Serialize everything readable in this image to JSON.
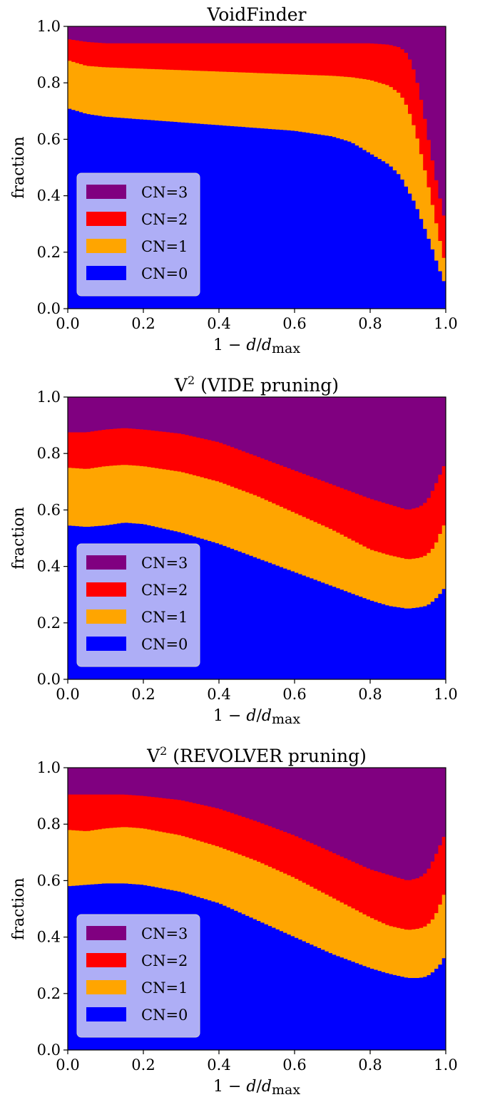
{
  "figure": {
    "panels": [
      {
        "title_main": "VoidFinder",
        "title_sup": "",
        "title_rest": ""
      },
      {
        "title_main": "V",
        "title_sup": "2",
        "title_rest": " (VIDE pruning)"
      },
      {
        "title_main": "V",
        "title_sup": "2",
        "title_rest": " (REVOLVER pruning)"
      }
    ]
  },
  "chart_data": [
    {
      "type": "area",
      "title": "VoidFinder",
      "xlabel": "1 − d/dmax",
      "ylabel": "fraction",
      "xlim": [
        0,
        1
      ],
      "ylim": [
        0,
        1
      ],
      "xticks": [
        "0.0",
        "0.2",
        "0.4",
        "0.6",
        "0.8",
        "1.0"
      ],
      "yticks": [
        "0.0",
        "0.2",
        "0.4",
        "0.6",
        "0.8",
        "1.0"
      ],
      "stacked": true,
      "legend": {
        "placement": "lower-left",
        "entries": [
          "CN=3",
          "CN=2",
          "CN=1",
          "CN=0"
        ]
      },
      "x": [
        0,
        0.05,
        0.1,
        0.2,
        0.3,
        0.4,
        0.5,
        0.6,
        0.7,
        0.75,
        0.8,
        0.85,
        0.88,
        0.9,
        0.92,
        0.94,
        0.96,
        0.98,
        1.0
      ],
      "series": [
        {
          "name": "CN=0",
          "color": "#0000ff",
          "top": [
            0.71,
            0.69,
            0.68,
            0.67,
            0.66,
            0.65,
            0.64,
            0.63,
            0.61,
            0.59,
            0.55,
            0.51,
            0.47,
            0.42,
            0.37,
            0.3,
            0.23,
            0.15,
            0.08
          ]
        },
        {
          "name": "CN=1",
          "color": "#ffa500",
          "top": [
            0.88,
            0.86,
            0.855,
            0.85,
            0.845,
            0.84,
            0.835,
            0.83,
            0.825,
            0.82,
            0.81,
            0.79,
            0.76,
            0.71,
            0.63,
            0.52,
            0.4,
            0.27,
            0.15
          ]
        },
        {
          "name": "CN=2",
          "color": "#ff0000",
          "top": [
            0.955,
            0.945,
            0.94,
            0.94,
            0.94,
            0.94,
            0.94,
            0.94,
            0.94,
            0.94,
            0.94,
            0.935,
            0.925,
            0.9,
            0.83,
            0.71,
            0.56,
            0.42,
            0.3
          ]
        },
        {
          "name": "CN=3",
          "color": "#800080",
          "top": [
            1,
            1,
            1,
            1,
            1,
            1,
            1,
            1,
            1,
            1,
            1,
            1,
            1,
            1,
            1,
            1,
            1,
            1,
            1
          ]
        }
      ]
    },
    {
      "type": "area",
      "title": "V2 (VIDE pruning)",
      "xlabel": "1 − d/dmax",
      "ylabel": "fraction",
      "xlim": [
        0,
        1
      ],
      "ylim": [
        0,
        1
      ],
      "xticks": [
        "0.0",
        "0.2",
        "0.4",
        "0.6",
        "0.8",
        "1.0"
      ],
      "yticks": [
        "0.0",
        "0.2",
        "0.4",
        "0.6",
        "0.8",
        "1.0"
      ],
      "stacked": true,
      "legend": {
        "placement": "lower-left",
        "entries": [
          "CN=3",
          "CN=2",
          "CN=1",
          "CN=0"
        ]
      },
      "x": [
        0,
        0.05,
        0.1,
        0.15,
        0.2,
        0.3,
        0.4,
        0.5,
        0.6,
        0.7,
        0.8,
        0.85,
        0.9,
        0.93,
        0.95,
        0.97,
        0.99,
        1.0
      ],
      "series": [
        {
          "name": "CN=0",
          "color": "#0000ff",
          "top": [
            0.545,
            0.54,
            0.545,
            0.555,
            0.55,
            0.52,
            0.48,
            0.43,
            0.38,
            0.33,
            0.28,
            0.26,
            0.25,
            0.255,
            0.26,
            0.28,
            0.31,
            0.33
          ]
        },
        {
          "name": "CN=1",
          "color": "#ffa500",
          "top": [
            0.75,
            0.745,
            0.755,
            0.76,
            0.755,
            0.735,
            0.7,
            0.65,
            0.59,
            0.53,
            0.46,
            0.44,
            0.425,
            0.43,
            0.44,
            0.47,
            0.53,
            0.56
          ]
        },
        {
          "name": "CN=2",
          "color": "#ff0000",
          "top": [
            0.875,
            0.875,
            0.885,
            0.89,
            0.885,
            0.87,
            0.84,
            0.79,
            0.74,
            0.69,
            0.64,
            0.62,
            0.6,
            0.61,
            0.63,
            0.68,
            0.74,
            0.77
          ]
        },
        {
          "name": "CN=3",
          "color": "#800080",
          "top": [
            1,
            1,
            1,
            1,
            1,
            1,
            1,
            1,
            1,
            1,
            1,
            1,
            1,
            1,
            1,
            1,
            1,
            1
          ]
        }
      ]
    },
    {
      "type": "area",
      "title": "V2 (REVOLVER pruning)",
      "xlabel": "1 − d/dmax",
      "ylabel": "fraction",
      "xlim": [
        0,
        1
      ],
      "ylim": [
        0,
        1
      ],
      "xticks": [
        "0.0",
        "0.2",
        "0.4",
        "0.6",
        "0.8",
        "1.0"
      ],
      "yticks": [
        "0.0",
        "0.2",
        "0.4",
        "0.6",
        "0.8",
        "1.0"
      ],
      "stacked": true,
      "legend": {
        "placement": "lower-left",
        "entries": [
          "CN=3",
          "CN=2",
          "CN=1",
          "CN=0"
        ]
      },
      "x": [
        0,
        0.05,
        0.1,
        0.15,
        0.2,
        0.3,
        0.4,
        0.5,
        0.6,
        0.7,
        0.8,
        0.85,
        0.9,
        0.93,
        0.95,
        0.97,
        0.99,
        1.0
      ],
      "series": [
        {
          "name": "CN=0",
          "color": "#0000ff",
          "top": [
            0.58,
            0.585,
            0.59,
            0.59,
            0.585,
            0.56,
            0.52,
            0.46,
            0.4,
            0.34,
            0.29,
            0.27,
            0.255,
            0.255,
            0.26,
            0.28,
            0.31,
            0.34
          ]
        },
        {
          "name": "CN=1",
          "color": "#ffa500",
          "top": [
            0.78,
            0.775,
            0.785,
            0.79,
            0.785,
            0.76,
            0.72,
            0.67,
            0.61,
            0.54,
            0.47,
            0.44,
            0.425,
            0.43,
            0.44,
            0.47,
            0.53,
            0.57
          ]
        },
        {
          "name": "CN=2",
          "color": "#ff0000",
          "top": [
            0.905,
            0.905,
            0.905,
            0.905,
            0.9,
            0.885,
            0.855,
            0.81,
            0.76,
            0.7,
            0.64,
            0.62,
            0.6,
            0.61,
            0.63,
            0.68,
            0.74,
            0.77
          ]
        },
        {
          "name": "CN=3",
          "color": "#800080",
          "top": [
            1,
            1,
            1,
            1,
            1,
            1,
            1,
            1,
            1,
            1,
            1,
            1,
            1,
            1,
            1,
            1,
            1,
            1
          ]
        }
      ]
    }
  ]
}
